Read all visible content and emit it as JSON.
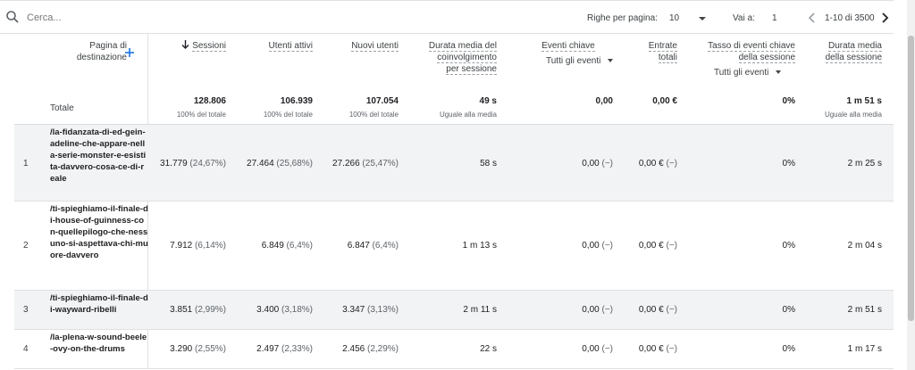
{
  "search": {
    "placeholder": "Cerca..."
  },
  "toolbar": {
    "rows_per_page_label": "Righe per pagina:",
    "rows_per_page_value": "10",
    "goto_label": "Vai a:",
    "goto_value": "1",
    "range_text": "1-10 di 3500"
  },
  "columns": {
    "landing_page": "Pagina di destinazione",
    "sessions": "Sessioni",
    "active_users": "Utenti attivi",
    "new_users": "Nuovi utenti",
    "avg_engagement": [
      "Durata media del",
      "coinvolgimento",
      "per sessione"
    ],
    "key_events": "Eventi chiave",
    "key_events_filter": "Tutti gli eventi",
    "revenue": [
      "Entrate",
      "totali"
    ],
    "key_event_rate": [
      "Tasso di eventi chiave",
      "della sessione"
    ],
    "key_event_rate_filter": "Tutti gli eventi",
    "avg_session_duration": [
      "Durata media",
      "della sessione"
    ]
  },
  "totals": {
    "label": "Totale",
    "sessions": "128.806",
    "sessions_sub": "100% del totale",
    "active_users": "106.939",
    "active_users_sub": "100% del totale",
    "new_users": "107.054",
    "new_users_sub": "100% del totale",
    "avg_engagement": "49 s",
    "avg_engagement_sub": "Uguale alla media",
    "key_events": "0,00",
    "revenue": "0,00 €",
    "key_event_rate": "0%",
    "avg_session_duration": "1 m 51 s",
    "avg_session_duration_sub": "Uguale alla media"
  },
  "rows": [
    {
      "n": "1",
      "page": "/la-fidanzata-di-ed-gein-adeline-che-appare-nella-serie-monster-e-esistita-davvero-cosa-ce-di-reale",
      "sessions": "31.779",
      "sessions_pct": "(24,67%)",
      "active_users": "27.464",
      "active_users_pct": "(25,68%)",
      "new_users": "27.266",
      "new_users_pct": "(25,47%)",
      "avg_engagement": "58 s",
      "key_events": "0,00",
      "key_events_pct": "(−)",
      "revenue": "0,00 €",
      "revenue_pct": "(−)",
      "key_event_rate": "0%",
      "avg_session_duration": "2 m 25 s"
    },
    {
      "n": "2",
      "page": "/ti-spieghiamo-il-finale-di-house-of-guinness-con-quellepilogo-che-nessuno-si-aspettava-chi-muore-davvero",
      "sessions": "7.912",
      "sessions_pct": "(6,14%)",
      "active_users": "6.849",
      "active_users_pct": "(6,4%)",
      "new_users": "6.847",
      "new_users_pct": "(6,4%)",
      "avg_engagement": "1 m 13 s",
      "key_events": "0,00",
      "key_events_pct": "(−)",
      "revenue": "0,00 €",
      "revenue_pct": "(−)",
      "key_event_rate": "0%",
      "avg_session_duration": "2 m 04 s"
    },
    {
      "n": "3",
      "page": "/ti-spieghiamo-il-finale-di-wayward-ribelli",
      "sessions": "3.851",
      "sessions_pct": "(2,99%)",
      "active_users": "3.400",
      "active_users_pct": "(3,18%)",
      "new_users": "3.347",
      "new_users_pct": "(3,13%)",
      "avg_engagement": "2 m 11 s",
      "key_events": "0,00",
      "key_events_pct": "(−)",
      "revenue": "0,00 €",
      "revenue_pct": "(−)",
      "key_event_rate": "0%",
      "avg_session_duration": "2 m 51 s"
    },
    {
      "n": "4",
      "page": "/la-plena-w-sound-beele-ovy-on-the-drums",
      "sessions": "3.290",
      "sessions_pct": "(2,55%)",
      "active_users": "2.497",
      "active_users_pct": "(2,33%)",
      "new_users": "2.456",
      "new_users_pct": "(2,29%)",
      "avg_engagement": "22 s",
      "key_events": "0,00",
      "key_events_pct": "(−)",
      "revenue": "0,00 €",
      "revenue_pct": "(−)",
      "key_event_rate": "0%",
      "avg_session_duration": "1 m 17 s"
    }
  ]
}
